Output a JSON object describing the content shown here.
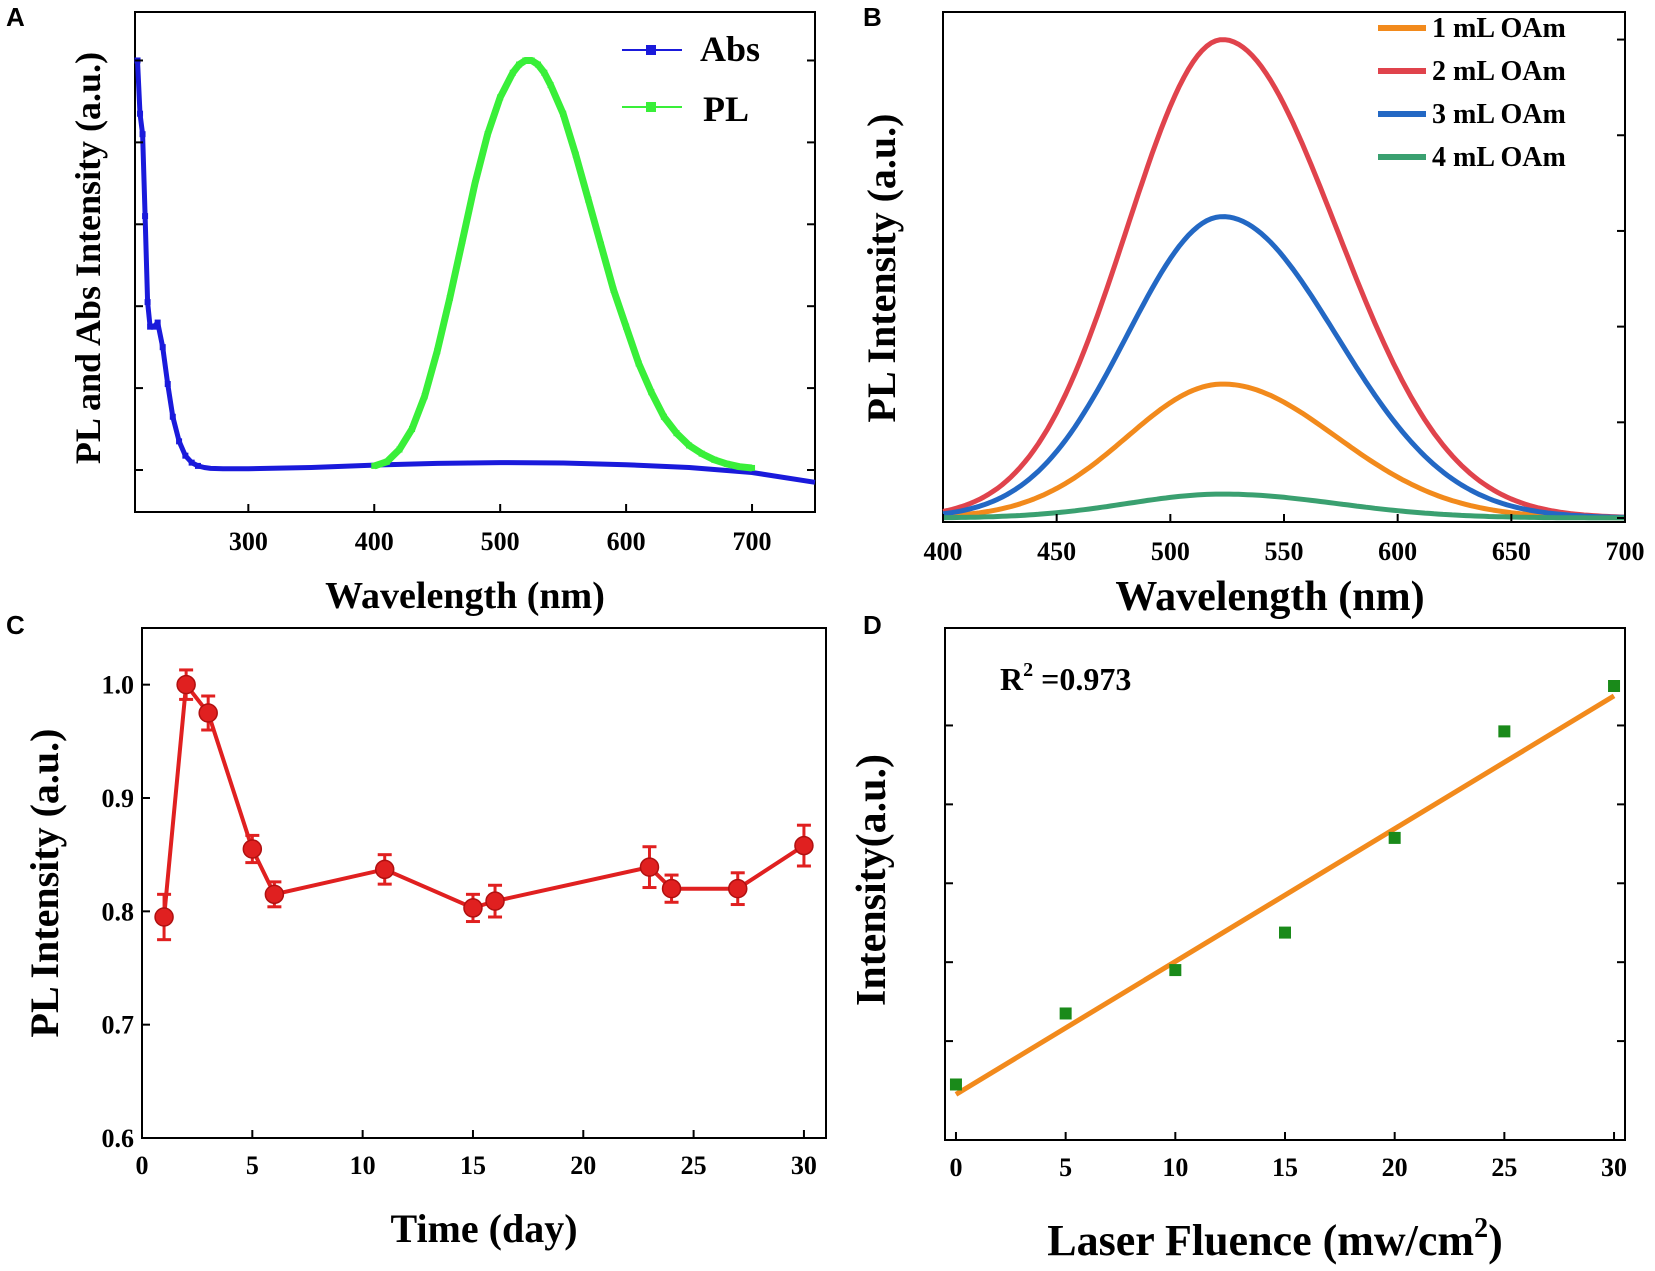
{
  "chart_data": [
    {
      "panel": "A",
      "type": "line",
      "xlabel": "Wavelength (nm)",
      "ylabel": "PL and Abs Intensity (a.u.)",
      "xlim": [
        210,
        750
      ],
      "ylim": [
        0,
        1.05
      ],
      "xticks": [
        300,
        400,
        500,
        600,
        700
      ],
      "series": [
        {
          "name": "Abs",
          "color": "#1a1adb",
          "x": [
            212,
            214,
            216,
            218,
            220,
            222,
            225,
            228,
            232,
            236,
            240,
            245,
            250,
            255,
            260,
            265,
            270,
            280,
            300,
            350,
            400,
            450,
            500,
            550,
            600,
            650,
            700,
            750
          ],
          "y": [
            1.0,
            0.87,
            0.82,
            0.62,
            0.41,
            0.35,
            0.35,
            0.36,
            0.3,
            0.21,
            0.13,
            0.07,
            0.035,
            0.018,
            0.01,
            0.006,
            0.004,
            0.003,
            0.003,
            0.006,
            0.012,
            0.016,
            0.018,
            0.017,
            0.013,
            0.006,
            -0.006,
            -0.03
          ]
        },
        {
          "name": "PL",
          "color": "#39ef39",
          "x": [
            400,
            410,
            420,
            430,
            440,
            450,
            460,
            470,
            480,
            490,
            500,
            510,
            515,
            520,
            525,
            530,
            535,
            540,
            550,
            560,
            570,
            580,
            590,
            600,
            610,
            620,
            630,
            640,
            650,
            660,
            670,
            680,
            690,
            700
          ],
          "y": [
            0.01,
            0.02,
            0.05,
            0.1,
            0.18,
            0.29,
            0.42,
            0.56,
            0.7,
            0.82,
            0.91,
            0.97,
            0.99,
            1.0,
            1.0,
            0.99,
            0.97,
            0.94,
            0.87,
            0.77,
            0.66,
            0.55,
            0.44,
            0.35,
            0.26,
            0.19,
            0.13,
            0.09,
            0.06,
            0.04,
            0.025,
            0.015,
            0.008,
            0.005
          ]
        }
      ]
    },
    {
      "panel": "B",
      "type": "line",
      "xlabel": "Wavelength (nm)",
      "ylabel": "PL Intensity (a.u.)",
      "xlim": [
        400,
        700
      ],
      "ylim": [
        0,
        1.02
      ],
      "xticks": [
        400,
        450,
        500,
        550,
        600,
        650,
        700
      ],
      "peak_nm": 523,
      "series": [
        {
          "name": "1 mL OAm",
          "color": "#f28a1c",
          "peak": 0.28
        },
        {
          "name": "2 mL OAm",
          "color": "#e0434c",
          "peak": 1.0
        },
        {
          "name": "3 mL OAm",
          "color": "#2368c4",
          "peak": 0.63
        },
        {
          "name": "4 mL OAm",
          "color": "#3aa070",
          "peak": 0.05
        }
      ]
    },
    {
      "panel": "C",
      "type": "line",
      "xlabel": "Time (day)",
      "ylabel": "PL Intensity (a.u.)",
      "xlim": [
        0,
        31
      ],
      "ylim": [
        0.6,
        1.05
      ],
      "xticks": [
        0,
        5,
        10,
        15,
        20,
        25,
        30
      ],
      "yticks": [
        "0.6",
        "0.7",
        "0.8",
        "0.9",
        "1.0"
      ],
      "color": "#e02020",
      "x": [
        1,
        2,
        3,
        5,
        6,
        11,
        15,
        16,
        23,
        24,
        27,
        30
      ],
      "y": [
        0.795,
        1.0,
        0.975,
        0.855,
        0.815,
        0.837,
        0.803,
        0.809,
        0.839,
        0.82,
        0.82,
        0.858
      ],
      "err": [
        0.02,
        0.013,
        0.015,
        0.012,
        0.011,
        0.013,
        0.012,
        0.014,
        0.018,
        0.012,
        0.014,
        0.018
      ]
    },
    {
      "panel": "D",
      "type": "scatter",
      "xlabel": "Laser Fluence (mw/cm",
      "xlabel_sup": "2",
      "xlabel_close": ")",
      "ylabel": "Intensity(a.u.)",
      "xlim": [
        -0.5,
        30.5
      ],
      "ylim": [
        0,
        1.1
      ],
      "xticks": [
        0,
        5,
        10,
        15,
        20,
        25,
        30
      ],
      "point_color": "#1a8a1a",
      "fit_color": "#f28a1c",
      "annotation": "R",
      "annotation_sup": "2",
      "annotation_value": " =0.973",
      "x": [
        0,
        5,
        10,
        15,
        20,
        25,
        30
      ],
      "y": [
        0.09,
        0.27,
        0.38,
        0.475,
        0.715,
        0.985,
        1.1
      ],
      "fit": {
        "x": [
          0,
          30
        ],
        "y": [
          0.065,
          1.075
        ]
      }
    }
  ]
}
